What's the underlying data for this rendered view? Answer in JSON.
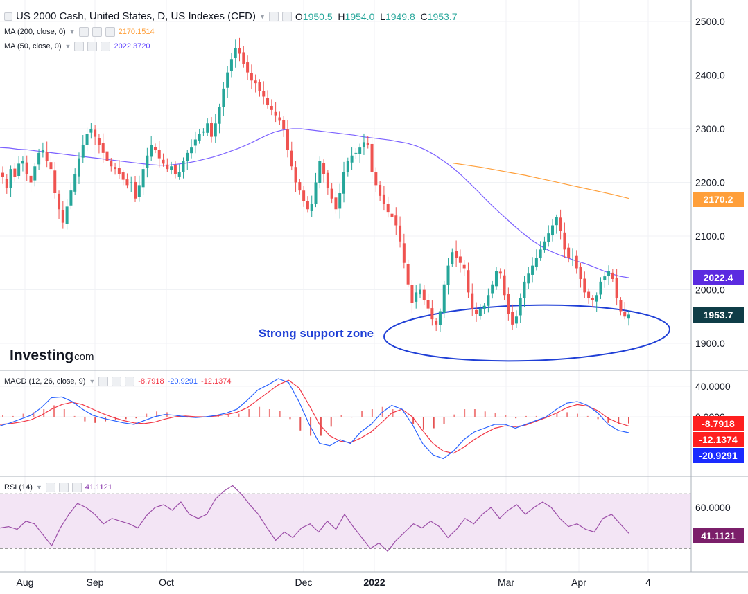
{
  "legend": {
    "main_title": "US 2000 Cash, United States, D, US Indexes (CFD)",
    "ohlc": {
      "o_label": "O",
      "o": "1950.5",
      "h_label": "H",
      "h": "1954.0",
      "l_label": "L",
      "l": "1949.8",
      "c_label": "C",
      "c": "1953.7"
    },
    "ma200": {
      "label": "MA (200, close, 0)",
      "value": "2170.1514"
    },
    "ma50": {
      "label": "MA (50, close, 0)",
      "value": "2022.3720"
    },
    "macd": {
      "label": "MACD (12, 26, close, 9)",
      "hist": "-8.7918",
      "macd": "-20.9291",
      "signal": "-12.1374"
    },
    "rsi": {
      "label": "RSI (14)",
      "value": "41.1121"
    }
  },
  "annotation": "Strong support zone",
  "brand": {
    "logo": "Investing",
    "suffix": ".com"
  },
  "price_tags": {
    "ma200": "2170.2",
    "ma50": "2022.4",
    "last": "1953.7",
    "macd_hist": "-8.7918",
    "macd_signal": "-12.1374",
    "macd_line": "-20.9291",
    "rsi": "41.1121"
  },
  "colors": {
    "up": "#26a69a",
    "down": "#ef5350",
    "ma50": "#7b61ff",
    "ma200": "#ff9f3a",
    "macd": "#2962ff",
    "signal": "#f23645",
    "rsi": "#9c4ea8",
    "support": "#1f3fd6",
    "last": "#0f3d47"
  },
  "chart_data": [
    {
      "type": "candlestick",
      "title": "US 2000 Cash, United States, D, US Indexes (CFD)",
      "x_ticks": [
        "Aug",
        "Sep",
        "Oct",
        "Dec",
        "2022",
        "Mar",
        "Apr",
        "4"
      ],
      "y_ticks": [
        1900,
        2000,
        2100,
        2200,
        2300,
        2400,
        2500
      ],
      "y_tick_labels": [
        "1900.0",
        "2000.0",
        "2100.0",
        "2200.0",
        "2300.0",
        "2400.0",
        "2500.0"
      ],
      "ylim": [
        1870,
        2520
      ],
      "closes": [
        2210,
        2190,
        2225,
        2210,
        2235,
        2240,
        2215,
        2200,
        2230,
        2255,
        2260,
        2240,
        2225,
        2180,
        2150,
        2125,
        2155,
        2185,
        2215,
        2245,
        2270,
        2290,
        2300,
        2285,
        2270,
        2255,
        2240,
        2230,
        2225,
        2215,
        2205,
        2195,
        2200,
        2170,
        2195,
        2225,
        2250,
        2270,
        2260,
        2245,
        2235,
        2225,
        2230,
        2215,
        2220,
        2240,
        2255,
        2265,
        2280,
        2290,
        2295,
        2310,
        2285,
        2310,
        2340,
        2375,
        2405,
        2430,
        2450,
        2440,
        2420,
        2405,
        2390,
        2385,
        2370,
        2360,
        2345,
        2335,
        2325,
        2315,
        2300,
        2260,
        2230,
        2200,
        2185,
        2165,
        2150,
        2160,
        2200,
        2240,
        2215,
        2190,
        2170,
        2150,
        2180,
        2220,
        2240,
        2250,
        2255,
        2265,
        2275,
        2270,
        2220,
        2195,
        2175,
        2160,
        2145,
        2135,
        2120,
        2090,
        2050,
        2010,
        1975,
        1995,
        2000,
        1980,
        1965,
        1945,
        1935,
        1960,
        2010,
        2045,
        2070,
        2060,
        2050,
        2040,
        1995,
        1965,
        1955,
        1965,
        1970,
        1990,
        2010,
        2035,
        2030,
        1990,
        1955,
        1935,
        1950,
        1985,
        2015,
        2030,
        2045,
        2060,
        2075,
        2090,
        2105,
        2120,
        2135,
        2110,
        2075,
        2060,
        2060,
        2040,
        2020,
        1995,
        1985,
        1980,
        1990,
        2015,
        2025,
        2035,
        2020,
        1985,
        1960,
        1950,
        1953.7
      ],
      "ma50": {
        "name": "MA (50, close, 0)",
        "values": [
          2265,
          2264,
          2262,
          2261,
          2259,
          2257,
          2255,
          2253,
          2251,
          2249,
          2247,
          2245,
          2243,
          2241,
          2239,
          2237,
          2235,
          2233,
          2232,
          2232,
          2234,
          2236,
          2239,
          2243,
          2247,
          2252,
          2258,
          2264,
          2271,
          2279,
          2287,
          2294,
          2298,
          2300,
          2300,
          2298,
          2296,
          2294,
          2292,
          2290,
          2288,
          2285,
          2283,
          2281,
          2279,
          2276,
          2273,
          2268,
          2261,
          2252,
          2241,
          2229,
          2215,
          2199,
          2183,
          2166,
          2150,
          2135,
          2120,
          2106,
          2093,
          2082,
          2073,
          2066,
          2060,
          2054,
          2049,
          2043,
          2036,
          2030,
          2025,
          2022.4
        ]
      },
      "ma200": {
        "name": "MA (200, close, 0)",
        "values": [
          2236,
          2232,
          2228,
          2223,
          2218,
          2213,
          2207,
          2201,
          2195,
          2189,
          2183,
          2177,
          2170.2
        ]
      },
      "support_zone": [
        1885,
        1975
      ]
    },
    {
      "type": "line",
      "title": "MACD (12, 26, close, 9)",
      "y_ticks": [
        0,
        40
      ],
      "y_tick_labels": [
        "0.0000",
        "40.0000"
      ],
      "ylim": [
        -62,
        55
      ],
      "macd": [
        -12,
        -8,
        -3,
        2,
        12,
        25,
        26,
        20,
        10,
        2,
        -2,
        -5,
        -8,
        -10,
        -5,
        0,
        3,
        2,
        0,
        -1,
        0,
        2,
        5,
        10,
        22,
        35,
        42,
        50,
        45,
        20,
        -10,
        -35,
        -38,
        -30,
        -35,
        -20,
        -10,
        5,
        15,
        10,
        -10,
        -35,
        -50,
        -55,
        -45,
        -30,
        -20,
        -15,
        -10,
        -10,
        -15,
        -10,
        -5,
        0,
        10,
        18,
        20,
        15,
        5,
        -10,
        -18,
        -20.9291
      ],
      "signal": [
        -10,
        -9,
        -7,
        -4,
        2,
        10,
        16,
        19,
        16,
        10,
        4,
        -1,
        -5,
        -8,
        -9,
        -7,
        -3,
        0,
        1,
        0,
        0,
        1,
        3,
        6,
        12,
        22,
        32,
        42,
        48,
        38,
        15,
        -10,
        -25,
        -32,
        -34,
        -28,
        -20,
        -8,
        5,
        10,
        0,
        -18,
        -35,
        -45,
        -48,
        -40,
        -30,
        -22,
        -15,
        -12,
        -13,
        -11,
        -6,
        -1,
        5,
        12,
        16,
        14,
        8,
        -2,
        -8,
        -12.1374
      ],
      "histogram": [
        2,
        1,
        4,
        6,
        10,
        15,
        10,
        1,
        -6,
        -8,
        -6,
        -4,
        -3,
        -2,
        4,
        7,
        6,
        2,
        -1,
        -1,
        0,
        1,
        2,
        4,
        10,
        13,
        10,
        8,
        -3,
        -18,
        -25,
        -25,
        -13,
        2,
        -1,
        8,
        10,
        13,
        10,
        0,
        -10,
        -17,
        -15,
        -10,
        3,
        10,
        10,
        7,
        5,
        2,
        -2,
        1,
        1,
        1,
        5,
        6,
        4,
        1,
        -3,
        -8,
        -10,
        -8.7918
      ]
    },
    {
      "type": "line",
      "title": "RSI (14)",
      "y_ticks": [
        60
      ],
      "y_tick_labels": [
        "60.0000"
      ],
      "band": [
        30,
        70
      ],
      "ylim": [
        22,
        78
      ],
      "values": [
        45,
        46,
        44,
        50,
        48,
        40,
        32,
        45,
        55,
        63,
        60,
        55,
        48,
        52,
        50,
        48,
        45,
        54,
        60,
        62,
        58,
        64,
        55,
        52,
        55,
        66,
        72,
        76,
        70,
        62,
        55,
        45,
        36,
        42,
        38,
        45,
        48,
        42,
        50,
        44,
        55,
        46,
        38,
        30,
        34,
        28,
        36,
        42,
        48,
        45,
        50,
        46,
        38,
        44,
        52,
        48,
        55,
        60,
        52,
        58,
        62,
        55,
        60,
        64,
        60,
        52,
        46,
        48,
        44,
        42,
        52,
        55,
        48,
        41.1121
      ]
    }
  ]
}
